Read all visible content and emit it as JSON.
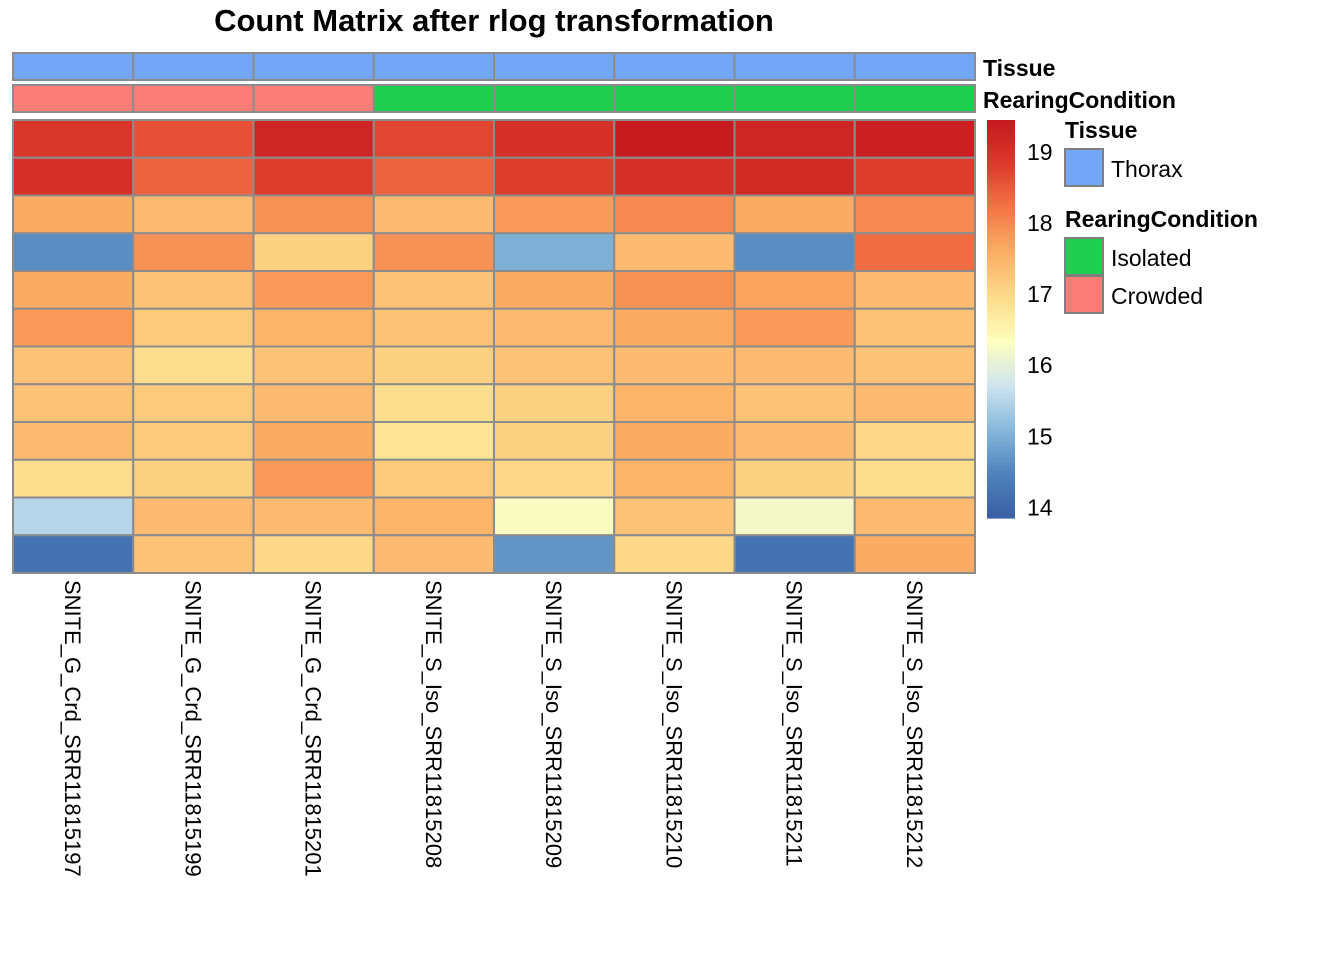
{
  "chart_data": {
    "type": "heatmap",
    "title": "Count Matrix after rlog transformation",
    "columns": [
      "SNITE_G_Crd_SRR11815197",
      "SNITE_G_Crd_SRR11815199",
      "SNITE_G_Crd_SRR11815201",
      "SNITE_S_Iso_SRR11815208",
      "SNITE_S_Iso_SRR11815209",
      "SNITE_S_Iso_SRR11815210",
      "SNITE_S_Iso_SRR11815211",
      "SNITE_S_Iso_SRR11815212"
    ],
    "annotations": [
      {
        "name": "Tissue",
        "values": [
          "Thorax",
          "Thorax",
          "Thorax",
          "Thorax",
          "Thorax",
          "Thorax",
          "Thorax",
          "Thorax"
        ],
        "levels": [
          {
            "label": "Thorax",
            "color": "#74A6F7"
          }
        ]
      },
      {
        "name": "RearingCondition",
        "values": [
          "Crowded",
          "Crowded",
          "Crowded",
          "Isolated",
          "Isolated",
          "Isolated",
          "Isolated",
          "Isolated"
        ],
        "levels": [
          {
            "label": "Isolated",
            "color": "#1FCF4F"
          },
          {
            "label": "Crowded",
            "color": "#FA7D77"
          }
        ]
      }
    ],
    "values": [
      [
        18.9,
        18.6,
        19.2,
        18.7,
        19.0,
        19.4,
        19.2,
        19.3
      ],
      [
        19.0,
        18.4,
        18.8,
        18.4,
        18.8,
        19.0,
        19.1,
        18.8
      ],
      [
        17.6,
        17.4,
        17.9,
        17.4,
        17.8,
        18.0,
        17.6,
        18.0
      ],
      [
        14.6,
        17.9,
        17.1,
        17.9,
        15.0,
        17.4,
        14.6,
        18.3
      ],
      [
        17.6,
        17.3,
        17.8,
        17.3,
        17.6,
        17.9,
        17.7,
        17.4
      ],
      [
        17.8,
        17.2,
        17.5,
        17.3,
        17.4,
        17.6,
        17.8,
        17.3
      ],
      [
        17.3,
        16.9,
        17.3,
        17.1,
        17.3,
        17.4,
        17.4,
        17.3
      ],
      [
        17.3,
        17.2,
        17.4,
        16.9,
        17.1,
        17.5,
        17.3,
        17.4
      ],
      [
        17.4,
        17.2,
        17.6,
        16.8,
        17.1,
        17.6,
        17.4,
        17.0
      ],
      [
        16.9,
        17.1,
        17.8,
        17.2,
        17.0,
        17.5,
        17.1,
        16.9
      ],
      [
        15.5,
        17.4,
        17.4,
        17.5,
        16.3,
        17.3,
        16.2,
        17.4
      ],
      [
        14.2,
        17.3,
        17.0,
        17.4,
        14.7,
        17.0,
        14.2,
        17.6
      ]
    ],
    "color_scale": {
      "min": 13.85,
      "max": 19.45,
      "colors": [
        "#3A5FA3",
        "#4E82BC",
        "#87B8DB",
        "#CFE5EF",
        "#FEFEBE",
        "#FDDB8A",
        "#FBAE65",
        "#F47647",
        "#DC3A2C",
        "#C5181F"
      ],
      "ticks": [
        14,
        15,
        16,
        17,
        18,
        19
      ]
    },
    "legend_position": "right"
  }
}
